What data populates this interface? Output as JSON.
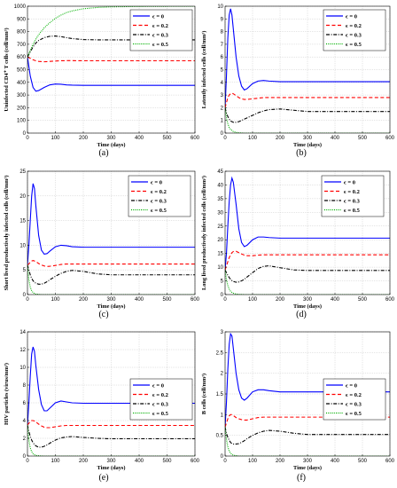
{
  "figure": {
    "legend_entries": [
      "ϵ = 0",
      "ϵ = 0.2",
      "ϵ = 0.3",
      "ϵ = 0.5"
    ],
    "series_colors": [
      "#0000ff",
      "#ff0000",
      "#000000",
      "#00b000"
    ],
    "series_dash": [
      "solid",
      "dashed",
      "dashdot",
      "dotted"
    ]
  },
  "chart_data": [
    {
      "panel_label": "(a)",
      "type": "line",
      "xlabel": "Time (days)",
      "ylabel": "Uninfected CD4⁺ T cells (cell/mm³)",
      "xlim": [
        0,
        600
      ],
      "ylim": [
        0,
        1000
      ],
      "xticks": [
        "0",
        "100",
        "200",
        "300",
        "400",
        "500",
        "600"
      ],
      "yticks": [
        "0",
        "100",
        "200",
        "300",
        "400",
        "500",
        "600",
        "700",
        "800",
        "900",
        "1000"
      ],
      "grid": true,
      "legend_position": "top-right",
      "x": [
        0,
        10,
        20,
        30,
        40,
        60,
        80,
        100,
        120,
        140,
        160,
        200,
        250,
        300,
        400,
        500,
        600
      ],
      "series": [
        {
          "name": "ϵ = 0",
          "values": [
            600,
            450,
            360,
            330,
            335,
            360,
            380,
            387,
            385,
            380,
            378,
            376,
            376,
            376,
            376,
            376,
            376
          ]
        },
        {
          "name": "ϵ = 0.2",
          "values": [
            600,
            590,
            578,
            570,
            565,
            562,
            565,
            568,
            570,
            571,
            571,
            570,
            570,
            570,
            570,
            570,
            570
          ]
        },
        {
          "name": "ϵ = 0.3",
          "values": [
            600,
            640,
            680,
            710,
            730,
            752,
            763,
            765,
            760,
            752,
            745,
            737,
            735,
            735,
            735,
            735,
            735
          ]
        },
        {
          "name": "ϵ = 0.5",
          "values": [
            600,
            650,
            700,
            740,
            775,
            830,
            870,
            905,
            930,
            950,
            963,
            980,
            990,
            995,
            998,
            999,
            1000
          ]
        }
      ]
    },
    {
      "panel_label": "(b)",
      "type": "line",
      "xlabel": "Time (days)",
      "ylabel": "Latently infected cells (cell/mm³)",
      "xlim": [
        0,
        600
      ],
      "ylim": [
        0,
        10
      ],
      "xticks": [
        "0",
        "100",
        "200",
        "300",
        "400",
        "500",
        "600"
      ],
      "yticks": [
        "0",
        "1",
        "2",
        "3",
        "4",
        "5",
        "6",
        "7",
        "8",
        "9",
        "10"
      ],
      "grid": true,
      "legend_position": "top-right",
      "x": [
        0,
        5,
        10,
        15,
        20,
        25,
        30,
        40,
        50,
        60,
        70,
        80,
        100,
        120,
        140,
        160,
        200,
        250,
        300,
        400,
        500,
        600
      ],
      "series": [
        {
          "name": "ϵ = 0",
          "values": [
            2,
            4.5,
            7.5,
            9.3,
            9.8,
            9.3,
            8.2,
            6,
            4.5,
            3.7,
            3.4,
            3.5,
            3.9,
            4.1,
            4.15,
            4.1,
            4.05,
            4.05,
            4.05,
            4.05,
            4.05,
            4.05
          ]
        },
        {
          "name": "ϵ = 0.2",
          "values": [
            2,
            2.4,
            2.8,
            3.0,
            3.1,
            3.15,
            3.1,
            2.95,
            2.8,
            2.7,
            2.65,
            2.65,
            2.7,
            2.75,
            2.8,
            2.8,
            2.8,
            2.8,
            2.8,
            2.8,
            2.8,
            2.8
          ]
        },
        {
          "name": "ϵ = 0.3",
          "values": [
            2,
            1.6,
            1.3,
            1.1,
            0.95,
            0.9,
            0.85,
            0.85,
            0.9,
            1.0,
            1.1,
            1.2,
            1.4,
            1.6,
            1.75,
            1.85,
            1.9,
            1.8,
            1.7,
            1.7,
            1.7,
            1.7
          ]
        },
        {
          "name": "ϵ = 0.5",
          "values": [
            2,
            1.2,
            0.75,
            0.45,
            0.3,
            0.2,
            0.12,
            0.05,
            0.02,
            0.01,
            0,
            0,
            0,
            0,
            0,
            0,
            0,
            0,
            0,
            0,
            0,
            0
          ]
        }
      ]
    },
    {
      "panel_label": "(c)",
      "type": "line",
      "xlabel": "Time (days)",
      "ylabel": "Short lived productively infected cells (cell/mm³)",
      "xlim": [
        0,
        600
      ],
      "ylim": [
        0,
        25
      ],
      "xticks": [
        "0",
        "100",
        "200",
        "300",
        "400",
        "500",
        "600"
      ],
      "yticks": [
        "0",
        "5",
        "10",
        "15",
        "20",
        "25"
      ],
      "grid": true,
      "legend_position": "top-right",
      "x": [
        0,
        5,
        10,
        15,
        20,
        25,
        30,
        40,
        50,
        60,
        70,
        80,
        100,
        120,
        140,
        160,
        200,
        250,
        300,
        400,
        500,
        600
      ],
      "series": [
        {
          "name": "ϵ = 0",
          "values": [
            6,
            10,
            15,
            20,
            22.5,
            21.5,
            18,
            12,
            9,
            8.2,
            8.3,
            8.8,
            9.7,
            10,
            9.9,
            9.7,
            9.6,
            9.6,
            9.6,
            9.6,
            9.6,
            9.6
          ]
        },
        {
          "name": "ϵ = 0.2",
          "values": [
            6,
            6.2,
            6.6,
            6.8,
            6.9,
            6.8,
            6.7,
            6.3,
            6,
            5.8,
            5.7,
            5.75,
            5.9,
            6.1,
            6.2,
            6.2,
            6.2,
            6.2,
            6.2,
            6.2,
            6.2,
            6.2
          ]
        },
        {
          "name": "ϵ = 0.3",
          "values": [
            6,
            5,
            4,
            3.3,
            2.8,
            2.5,
            2.3,
            2.1,
            2.1,
            2.3,
            2.6,
            3.0,
            3.7,
            4.3,
            4.7,
            4.9,
            4.7,
            4.2,
            4.0,
            4.0,
            4.0,
            4.0
          ]
        },
        {
          "name": "ϵ = 0.5",
          "values": [
            6,
            3,
            1.5,
            0.8,
            0.4,
            0.2,
            0.1,
            0.05,
            0,
            0,
            0,
            0,
            0,
            0,
            0,
            0,
            0,
            0,
            0,
            0,
            0,
            0
          ]
        }
      ]
    },
    {
      "panel_label": "(d)",
      "type": "line",
      "xlabel": "Time (days)",
      "ylabel": "Long lived productively infected cells (cell/mm³)",
      "xlim": [
        0,
        600
      ],
      "ylim": [
        0,
        45
      ],
      "xticks": [
        "0",
        "100",
        "200",
        "300",
        "400",
        "500",
        "600"
      ],
      "yticks": [
        "0",
        "5",
        "10",
        "15",
        "20",
        "25",
        "30",
        "35",
        "40",
        "45"
      ],
      "grid": true,
      "legend_position": "top-right",
      "x": [
        0,
        5,
        10,
        15,
        20,
        25,
        30,
        40,
        50,
        60,
        70,
        80,
        100,
        120,
        140,
        160,
        200,
        250,
        300,
        400,
        500,
        600
      ],
      "series": [
        {
          "name": "ϵ = 0",
          "values": [
            9,
            15,
            25,
            34,
            40,
            42.5,
            41,
            33,
            24,
            19,
            17.5,
            18,
            20,
            21,
            21,
            20.8,
            20.6,
            20.6,
            20.6,
            20.6,
            20.6,
            20.6
          ]
        },
        {
          "name": "ϵ = 0.2",
          "values": [
            9,
            10.5,
            12,
            13.5,
            14.5,
            15.3,
            15.7,
            15.8,
            15.3,
            14.8,
            14.4,
            14.2,
            14.2,
            14.4,
            14.5,
            14.5,
            14.5,
            14.5,
            14.5,
            14.5,
            14.5,
            14.5
          ]
        },
        {
          "name": "ϵ = 0.3",
          "values": [
            9,
            8,
            7,
            6.2,
            5.6,
            5.1,
            4.8,
            4.5,
            4.6,
            5.0,
            5.6,
            6.4,
            8.0,
            9.5,
            10.3,
            10.5,
            9.8,
            9.0,
            8.8,
            8.8,
            8.8,
            8.8
          ]
        },
        {
          "name": "ϵ = 0.5",
          "values": [
            9,
            5.5,
            3.3,
            2,
            1.2,
            0.8,
            0.5,
            0.2,
            0.1,
            0.05,
            0,
            0,
            0,
            0,
            0,
            0,
            0,
            0,
            0,
            0,
            0,
            0
          ]
        }
      ]
    },
    {
      "panel_label": "(e)",
      "type": "line",
      "xlabel": "Time (days)",
      "ylabel": "HIV particles (virus/mm³)",
      "xlim": [
        0,
        600
      ],
      "ylim": [
        0,
        14
      ],
      "xticks": [
        "0",
        "100",
        "200",
        "300",
        "400",
        "500",
        "600"
      ],
      "yticks": [
        "0",
        "2",
        "4",
        "6",
        "8",
        "10",
        "12",
        "14"
      ],
      "grid": true,
      "legend_position": "top-right",
      "x": [
        0,
        5,
        10,
        15,
        20,
        25,
        30,
        40,
        50,
        60,
        70,
        80,
        100,
        120,
        140,
        160,
        200,
        250,
        300,
        400,
        500,
        600
      ],
      "series": [
        {
          "name": "ϵ = 0",
          "values": [
            3.5,
            6,
            9,
            11.5,
            12.3,
            11.8,
            10.2,
            7.5,
            5.8,
            5.1,
            5.1,
            5.4,
            6,
            6.2,
            6.1,
            6,
            5.95,
            5.95,
            5.95,
            5.95,
            5.95,
            5.95
          ]
        },
        {
          "name": "ϵ = 0.2",
          "values": [
            3.5,
            3.7,
            3.9,
            4.0,
            4.0,
            3.95,
            3.85,
            3.6,
            3.4,
            3.25,
            3.2,
            3.2,
            3.3,
            3.4,
            3.45,
            3.45,
            3.45,
            3.45,
            3.45,
            3.45,
            3.45,
            3.45
          ]
        },
        {
          "name": "ϵ = 0.3",
          "values": [
            3.5,
            2.8,
            2.2,
            1.8,
            1.5,
            1.3,
            1.15,
            1.0,
            1.0,
            1.1,
            1.25,
            1.45,
            1.8,
            2.05,
            2.15,
            2.2,
            2.1,
            2.0,
            1.95,
            1.95,
            1.95,
            1.95
          ]
        },
        {
          "name": "ϵ = 0.5",
          "values": [
            3.5,
            1.8,
            0.9,
            0.5,
            0.25,
            0.15,
            0.08,
            0.03,
            0.01,
            0,
            0,
            0,
            0,
            0,
            0,
            0,
            0,
            0,
            0,
            0,
            0,
            0
          ]
        }
      ]
    },
    {
      "panel_label": "(f)",
      "type": "line",
      "xlabel": "Time (days)",
      "ylabel": "B cells (cell/mm³)",
      "xlim": [
        0,
        600
      ],
      "ylim": [
        0,
        3
      ],
      "xticks": [
        "0",
        "100",
        "200",
        "300",
        "400",
        "500",
        "600"
      ],
      "yticks": [
        "0",
        "0.5",
        "1",
        "1.5",
        "2",
        "2.5",
        "3"
      ],
      "grid": true,
      "legend_position": "top-right",
      "x": [
        0,
        5,
        10,
        15,
        20,
        25,
        30,
        40,
        50,
        60,
        70,
        80,
        100,
        120,
        140,
        160,
        200,
        250,
        300,
        400,
        500,
        600
      ],
      "series": [
        {
          "name": "ϵ = 0",
          "values": [
            0.7,
            1.3,
            2.1,
            2.7,
            2.95,
            2.9,
            2.6,
            2.0,
            1.6,
            1.4,
            1.35,
            1.4,
            1.55,
            1.6,
            1.6,
            1.58,
            1.55,
            1.55,
            1.55,
            1.55,
            1.55,
            1.55
          ]
        },
        {
          "name": "ϵ = 0.2",
          "values": [
            0.7,
            0.8,
            0.9,
            0.97,
            1.0,
            1.0,
            0.98,
            0.93,
            0.9,
            0.88,
            0.87,
            0.87,
            0.9,
            0.93,
            0.94,
            0.94,
            0.94,
            0.94,
            0.94,
            0.94,
            0.94,
            0.94
          ]
        },
        {
          "name": "ϵ = 0.3",
          "values": [
            0.7,
            0.55,
            0.45,
            0.38,
            0.33,
            0.3,
            0.29,
            0.29,
            0.3,
            0.33,
            0.37,
            0.42,
            0.5,
            0.56,
            0.6,
            0.62,
            0.6,
            0.55,
            0.52,
            0.52,
            0.52,
            0.52
          ]
        },
        {
          "name": "ϵ = 0.5",
          "values": [
            0.7,
            0.4,
            0.22,
            0.12,
            0.07,
            0.04,
            0.02,
            0.01,
            0,
            0,
            0,
            0,
            0,
            0,
            0,
            0,
            0,
            0,
            0,
            0,
            0,
            0
          ]
        }
      ]
    }
  ]
}
